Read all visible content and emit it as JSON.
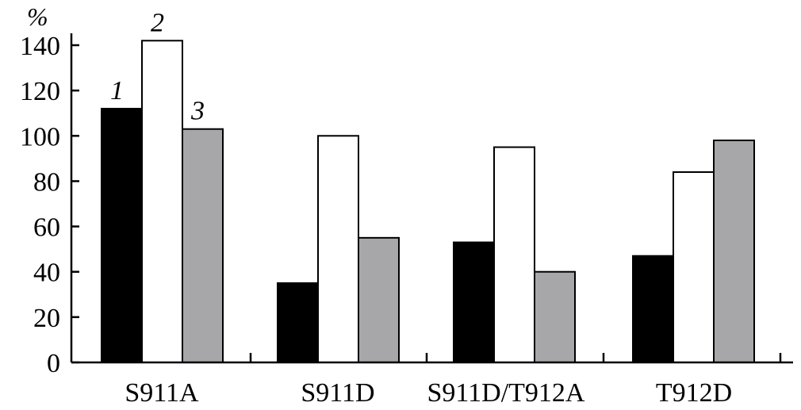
{
  "chart_data": {
    "type": "bar",
    "ylabel": "%",
    "ylim": [
      0,
      140
    ],
    "yticks": [
      "0",
      "20",
      "40",
      "60",
      "80",
      "100",
      "120",
      "140"
    ],
    "grid": false,
    "legend": "none",
    "categories": [
      "S911A",
      "S911D",
      "S911D/T912A",
      "T912D"
    ],
    "series": [
      {
        "name": "1",
        "color": "#000000",
        "values": [
          112,
          35,
          53,
          47
        ]
      },
      {
        "name": "2",
        "color": "#ffffff",
        "values": [
          142,
          100,
          95,
          84
        ]
      },
      {
        "name": "3",
        "color": "#a7a7a9",
        "values": [
          103,
          55,
          40,
          98
        ]
      }
    ]
  }
}
